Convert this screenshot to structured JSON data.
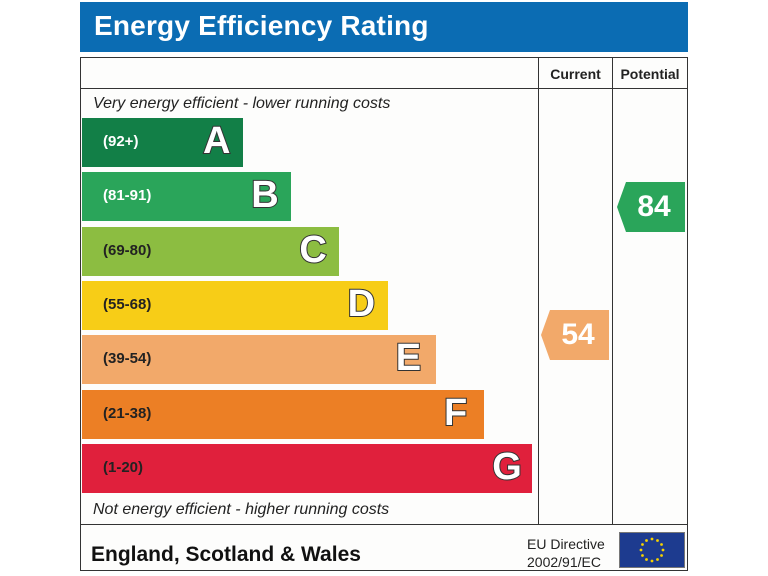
{
  "chart_data": {
    "type": "bar",
    "title": "Energy Efficiency Rating",
    "orientation": "horizontal",
    "columns": [
      "Current",
      "Potential"
    ],
    "top_caption": "Very energy efficient - lower running costs",
    "bottom_caption": "Not energy efficient - higher running costs",
    "bands": [
      {
        "letter": "A",
        "range": "(92+)",
        "min": 92,
        "max": 100,
        "color": "#127f47",
        "range_color": "#ffffff"
      },
      {
        "letter": "B",
        "range": "(81-91)",
        "min": 81,
        "max": 91,
        "color": "#2aa55a",
        "range_color": "#ffffff"
      },
      {
        "letter": "C",
        "range": "(69-80)",
        "min": 69,
        "max": 80,
        "color": "#8cbd41",
        "range_color": "#222222"
      },
      {
        "letter": "D",
        "range": "(55-68)",
        "min": 55,
        "max": 68,
        "color": "#f7cd17",
        "range_color": "#222222"
      },
      {
        "letter": "E",
        "range": "(39-54)",
        "min": 39,
        "max": 54,
        "color": "#f2a96a",
        "range_color": "#222222"
      },
      {
        "letter": "F",
        "range": "(21-38)",
        "min": 21,
        "max": 38,
        "color": "#ec7f25",
        "range_color": "#222222"
      },
      {
        "letter": "G",
        "range": "(1-20)",
        "min": 1,
        "max": 20,
        "color": "#e0203c",
        "range_color": "#222222"
      }
    ],
    "current": {
      "value": 54,
      "band": "E",
      "color": "#f2a96a"
    },
    "potential": {
      "value": 84,
      "band": "B",
      "color": "#2aa55a"
    }
  },
  "header": {
    "title": "Energy Efficiency Rating",
    "bg_color": "#0b6cb3"
  },
  "table": {
    "col_current": "Current",
    "col_potential": "Potential"
  },
  "footer": {
    "region": "England, Scotland & Wales",
    "directive_line1": "EU Directive",
    "directive_line2": "2002/91/EC",
    "flag_icon": "eu-flag-icon"
  }
}
